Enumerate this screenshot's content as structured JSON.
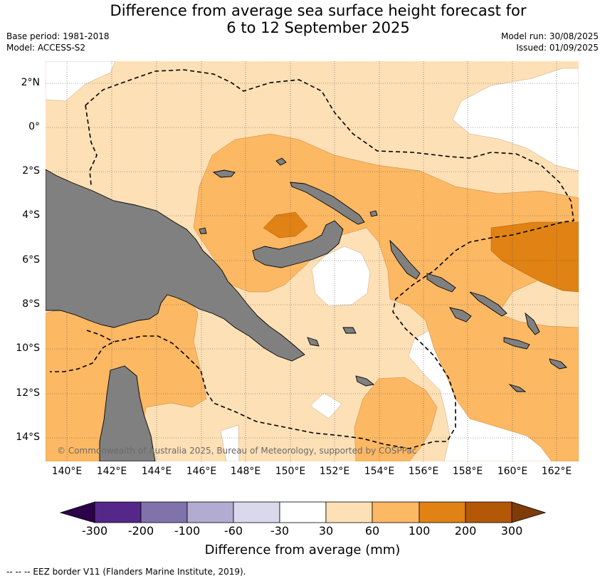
{
  "title_line1": "Difference from average sea surface height forecast for",
  "title_line2": "6 to 12 September 2025",
  "base_period": "Base period: 1981-2018",
  "model": "Model: ACCESS-S2",
  "model_run": "Model run: 30/08/2025",
  "issued": "Issued: 01/09/2025",
  "lat_labels": [
    "2°N",
    "0°",
    "2°S",
    "4°S",
    "6°S",
    "8°S",
    "10°S",
    "12°S",
    "14°S"
  ],
  "lon_labels": [
    "140°E",
    "142°E",
    "144°E",
    "146°E",
    "148°E",
    "150°E",
    "152°E",
    "154°E",
    "156°E",
    "158°E",
    "160°E",
    "162°E"
  ],
  "copyright": "© Commonwealth of Australia 2025, Bureau of Meteorology, supported by COSPPac",
  "colorbar": {
    "ticks": [
      "-300",
      "-200",
      "-100",
      "-60",
      "-30",
      "30",
      "60",
      "100",
      "200",
      "300"
    ],
    "colors": [
      "#2d004b",
      "#542788",
      "#8073ac",
      "#b2abd2",
      "#d8daeb",
      "#ffffff",
      "#fee0b6",
      "#fdb863",
      "#e08214",
      "#b35806",
      "#7f3b08"
    ],
    "label": "Difference from average (mm)"
  },
  "legend_note": "--  --  -- EEZ border V11 (Flanders Marine Institute, 2019)."
}
